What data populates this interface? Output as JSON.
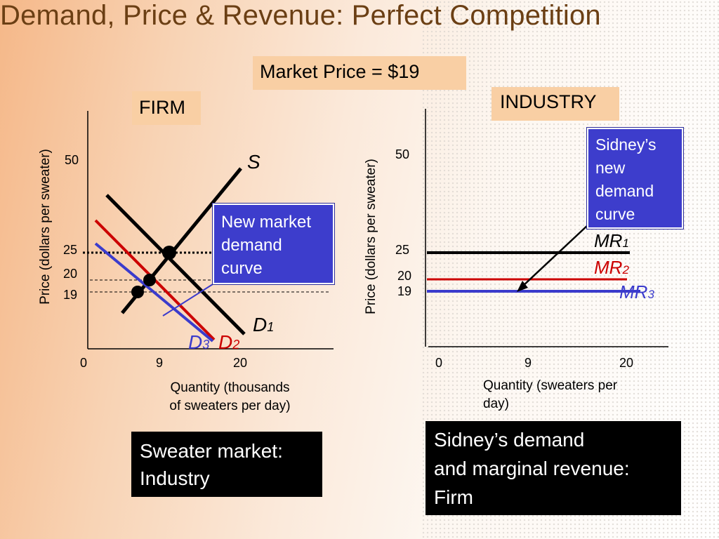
{
  "slide": {
    "title": "Demand, Price & Revenue: Perfect Competition",
    "market_price": "Market Price = $19"
  },
  "left_panel": {
    "panel_label": "FIRM",
    "ylabel": "Price (dollars per sweater)",
    "y_ticks": [
      "50",
      "25",
      "20",
      "19"
    ],
    "x_ticks": [
      "0",
      "9",
      "20"
    ],
    "xlabel_line1": "Quantity (thousands",
    "xlabel_line2": "of sweaters per day)",
    "curve_s": "S",
    "curve_d1": "D",
    "curve_d1_sub": "1",
    "curve_d2": "D",
    "curve_d2_sub": "2",
    "curve_d3": "D",
    "curve_d3_sub": "3",
    "callout_line1": "New market",
    "callout_line2": "demand",
    "callout_line3": "curve",
    "caption_line1": "Sweater market:",
    "caption_line2": "Industry"
  },
  "right_panel": {
    "panel_label": "INDUSTRY",
    "ylabel": "Price (dollars per sweater)",
    "y_ticks": [
      "50",
      "25",
      "20",
      "19"
    ],
    "x_ticks": [
      "0",
      "9",
      "20"
    ],
    "xlabel_line1": "Quantity (sweaters per",
    "xlabel_line2": "day)",
    "mr1": "MR",
    "mr1_sub": "1",
    "mr2": "MR",
    "mr2_sub": "2",
    "mr3": "MR",
    "mr3_sub": "3",
    "callout_line1": "Sidney’s",
    "callout_line2": "new",
    "callout_line3": "demand",
    "callout_line4": "curve",
    "caption_line1": "Sidney’s demand",
    "caption_line2": "and marginal revenue:",
    "caption_line3": "Firm"
  },
  "colors": {
    "title": "#6b3f14",
    "d1_mr1": "#000000",
    "d2_mr2": "#cc0000",
    "d3_mr3": "#3b3bcc",
    "callout_fill": "#3d3dcc",
    "label_fill": "#f9cfa4"
  }
}
